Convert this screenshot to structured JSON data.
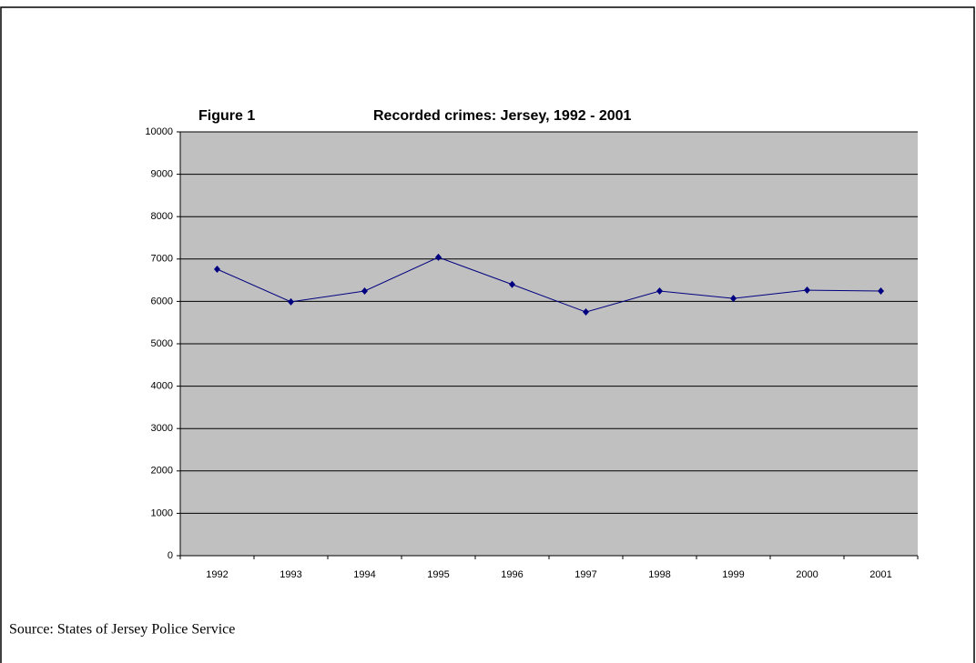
{
  "chart_data": {
    "type": "line",
    "figure_label": "Figure 1",
    "title": "Recorded crimes: Jersey, 1992 - 2001",
    "categories": [
      "1992",
      "1993",
      "1994",
      "1995",
      "1996",
      "1997",
      "1998",
      "1999",
      "2000",
      "2001"
    ],
    "values": [
      6760,
      5990,
      6245,
      7040,
      6400,
      5750,
      6245,
      6070,
      6265,
      6245
    ],
    "color": "#000080",
    "background": "#c0c0c0",
    "ylim": [
      0,
      10000
    ],
    "yticks": [
      0,
      1000,
      2000,
      3000,
      4000,
      5000,
      6000,
      7000,
      8000,
      9000,
      10000
    ],
    "grid": true,
    "source": "Source: States of Jersey Police Service"
  }
}
